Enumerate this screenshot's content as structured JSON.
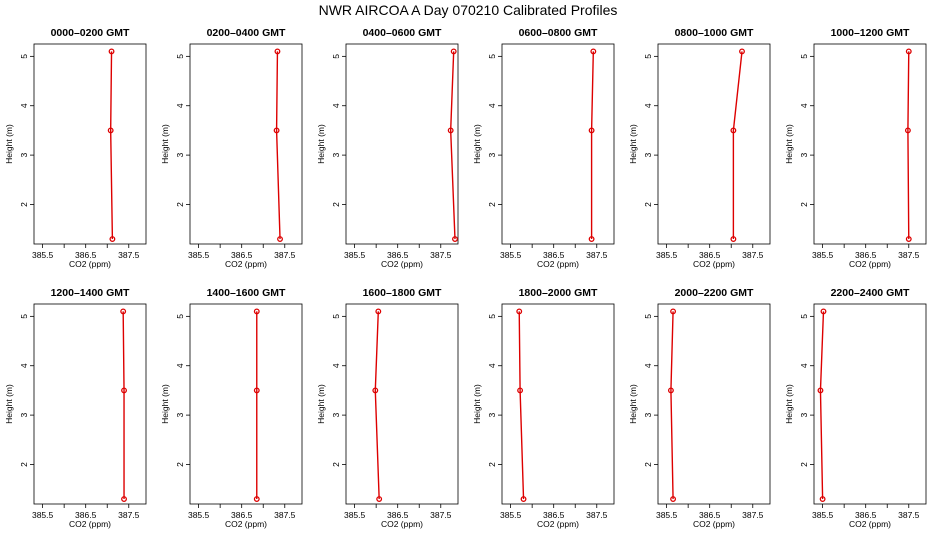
{
  "page_title": "NWR AIRCOA A  Day 070210  Calibrated Profiles",
  "colors": {
    "series": "#dd0000",
    "axis": "#000000"
  },
  "chart_data": [
    {
      "type": "line",
      "title": "0000–0200 GMT",
      "xlabel": "CO2 (ppm)",
      "ylabel": "Height (m)",
      "xlim": [
        385.3,
        387.9
      ],
      "ylim": [
        1.2,
        5.25
      ],
      "xticks": [
        385.5,
        386.0,
        386.5,
        387.0,
        387.5
      ],
      "xtick_labels": [
        "385.5",
        "",
        "386.5",
        "",
        "387.5"
      ],
      "yticks": [
        2,
        3,
        4,
        5
      ],
      "ytick_labels": [
        "2",
        "3",
        "4",
        "5"
      ],
      "series": [
        {
          "x": [
            387.1,
            387.08,
            387.12
          ],
          "y": [
            5.1,
            3.5,
            1.3
          ]
        }
      ]
    },
    {
      "type": "line",
      "title": "0200–0400 GMT",
      "xlabel": "CO2 (ppm)",
      "ylabel": "Height (m)",
      "xlim": [
        385.3,
        387.9
      ],
      "ylim": [
        1.2,
        5.25
      ],
      "xticks": [
        385.5,
        386.0,
        386.5,
        387.0,
        387.5
      ],
      "xtick_labels": [
        "385.5",
        "",
        "386.5",
        "",
        "387.5"
      ],
      "yticks": [
        2,
        3,
        4,
        5
      ],
      "ytick_labels": [
        "2",
        "3",
        "4",
        "5"
      ],
      "series": [
        {
          "x": [
            387.33,
            387.31,
            387.39
          ],
          "y": [
            5.1,
            3.5,
            1.3
          ]
        }
      ]
    },
    {
      "type": "line",
      "title": "0400–0600 GMT",
      "xlabel": "CO2 (ppm)",
      "ylabel": "Height (m)",
      "xlim": [
        385.3,
        387.9
      ],
      "ylim": [
        1.2,
        5.25
      ],
      "xticks": [
        385.5,
        386.0,
        386.5,
        387.0,
        387.5
      ],
      "xtick_labels": [
        "385.5",
        "",
        "386.5",
        "",
        "387.5"
      ],
      "yticks": [
        2,
        3,
        4,
        5
      ],
      "ytick_labels": [
        "2",
        "3",
        "4",
        "5"
      ],
      "series": [
        {
          "x": [
            387.8,
            387.73,
            387.83
          ],
          "y": [
            5.1,
            3.5,
            1.3
          ]
        }
      ]
    },
    {
      "type": "line",
      "title": "0600–0800 GMT",
      "xlabel": "CO2 (ppm)",
      "ylabel": "Height (m)",
      "xlim": [
        385.3,
        387.9
      ],
      "ylim": [
        1.2,
        5.25
      ],
      "xticks": [
        385.5,
        386.0,
        386.5,
        387.0,
        387.5
      ],
      "xtick_labels": [
        "385.5",
        "",
        "386.5",
        "",
        "387.5"
      ],
      "yticks": [
        2,
        3,
        4,
        5
      ],
      "ytick_labels": [
        "2",
        "3",
        "4",
        "5"
      ],
      "series": [
        {
          "x": [
            387.42,
            387.38,
            387.38
          ],
          "y": [
            5.1,
            3.5,
            1.3
          ]
        }
      ]
    },
    {
      "type": "line",
      "title": "0800–1000 GMT",
      "xlabel": "CO2 (ppm)",
      "ylabel": "Height (m)",
      "xlim": [
        385.3,
        387.9
      ],
      "ylim": [
        1.2,
        5.25
      ],
      "xticks": [
        385.5,
        386.0,
        386.5,
        387.0,
        387.5
      ],
      "xtick_labels": [
        "385.5",
        "",
        "386.5",
        "",
        "387.5"
      ],
      "yticks": [
        2,
        3,
        4,
        5
      ],
      "ytick_labels": [
        "2",
        "3",
        "4",
        "5"
      ],
      "series": [
        {
          "x": [
            387.25,
            387.05,
            387.05
          ],
          "y": [
            5.1,
            3.5,
            1.3
          ]
        }
      ]
    },
    {
      "type": "line",
      "title": "1000–1200 GMT",
      "xlabel": "CO2 (ppm)",
      "ylabel": "Height (m)",
      "xlim": [
        385.3,
        387.9
      ],
      "ylim": [
        1.2,
        5.25
      ],
      "xticks": [
        385.5,
        386.0,
        386.5,
        387.0,
        387.5
      ],
      "xtick_labels": [
        "385.5",
        "",
        "386.5",
        "",
        "387.5"
      ],
      "yticks": [
        2,
        3,
        4,
        5
      ],
      "ytick_labels": [
        "2",
        "3",
        "4",
        "5"
      ],
      "series": [
        {
          "x": [
            387.5,
            387.48,
            387.5
          ],
          "y": [
            5.1,
            3.5,
            1.3
          ]
        }
      ]
    },
    {
      "type": "line",
      "title": "1200–1400 GMT",
      "xlabel": "CO2 (ppm)",
      "ylabel": "Height (m)",
      "xlim": [
        385.3,
        387.9
      ],
      "ylim": [
        1.2,
        5.25
      ],
      "xticks": [
        385.5,
        386.0,
        386.5,
        387.0,
        387.5
      ],
      "xtick_labels": [
        "385.5",
        "",
        "386.5",
        "",
        "387.5"
      ],
      "yticks": [
        2,
        3,
        4,
        5
      ],
      "ytick_labels": [
        "2",
        "3",
        "4",
        "5"
      ],
      "series": [
        {
          "x": [
            387.37,
            387.39,
            387.39
          ],
          "y": [
            5.1,
            3.5,
            1.3
          ]
        }
      ]
    },
    {
      "type": "line",
      "title": "1400–1600 GMT",
      "xlabel": "CO2 (ppm)",
      "ylabel": "Height (m)",
      "xlim": [
        385.3,
        387.9
      ],
      "ylim": [
        1.2,
        5.25
      ],
      "xticks": [
        385.5,
        386.0,
        386.5,
        387.0,
        387.5
      ],
      "xtick_labels": [
        "385.5",
        "",
        "386.5",
        "",
        "387.5"
      ],
      "yticks": [
        2,
        3,
        4,
        5
      ],
      "ytick_labels": [
        "2",
        "3",
        "4",
        "5"
      ],
      "series": [
        {
          "x": [
            386.85,
            386.85,
            386.85
          ],
          "y": [
            5.1,
            3.5,
            1.3
          ]
        }
      ]
    },
    {
      "type": "line",
      "title": "1600–1800 GMT",
      "xlabel": "CO2 (ppm)",
      "ylabel": "Height (m)",
      "xlim": [
        385.3,
        387.9
      ],
      "ylim": [
        1.2,
        5.25
      ],
      "xticks": [
        385.5,
        386.0,
        386.5,
        387.0,
        387.5
      ],
      "xtick_labels": [
        "385.5",
        "",
        "386.5",
        "",
        "387.5"
      ],
      "yticks": [
        2,
        3,
        4,
        5
      ],
      "ytick_labels": [
        "2",
        "3",
        "4",
        "5"
      ],
      "series": [
        {
          "x": [
            386.05,
            385.98,
            386.07
          ],
          "y": [
            5.1,
            3.5,
            1.3
          ]
        }
      ]
    },
    {
      "type": "line",
      "title": "1800–2000 GMT",
      "xlabel": "CO2 (ppm)",
      "ylabel": "Height (m)",
      "xlim": [
        385.3,
        387.9
      ],
      "ylim": [
        1.2,
        5.25
      ],
      "xticks": [
        385.5,
        386.0,
        386.5,
        387.0,
        387.5
      ],
      "xtick_labels": [
        "385.5",
        "",
        "386.5",
        "",
        "387.5"
      ],
      "yticks": [
        2,
        3,
        4,
        5
      ],
      "ytick_labels": [
        "2",
        "3",
        "4",
        "5"
      ],
      "series": [
        {
          "x": [
            385.7,
            385.72,
            385.8
          ],
          "y": [
            5.1,
            3.5,
            1.3
          ]
        }
      ]
    },
    {
      "type": "line",
      "title": "2000–2200 GMT",
      "xlabel": "CO2 (ppm)",
      "ylabel": "Height (m)",
      "xlim": [
        385.3,
        387.9
      ],
      "ylim": [
        1.2,
        5.25
      ],
      "xticks": [
        385.5,
        386.0,
        386.5,
        387.0,
        387.5
      ],
      "xtick_labels": [
        "385.5",
        "",
        "386.5",
        "",
        "387.5"
      ],
      "yticks": [
        2,
        3,
        4,
        5
      ],
      "ytick_labels": [
        "2",
        "3",
        "4",
        "5"
      ],
      "series": [
        {
          "x": [
            385.65,
            385.6,
            385.65
          ],
          "y": [
            5.1,
            3.5,
            1.3
          ]
        }
      ]
    },
    {
      "type": "line",
      "title": "2200–2400 GMT",
      "xlabel": "CO2 (ppm)",
      "ylabel": "Height (m)",
      "xlim": [
        385.3,
        387.9
      ],
      "ylim": [
        1.2,
        5.25
      ],
      "xticks": [
        385.5,
        386.0,
        386.5,
        387.0,
        387.5
      ],
      "xtick_labels": [
        "385.5",
        "",
        "386.5",
        "",
        "387.5"
      ],
      "yticks": [
        2,
        3,
        4,
        5
      ],
      "ytick_labels": [
        "2",
        "3",
        "4",
        "5"
      ],
      "series": [
        {
          "x": [
            385.52,
            385.45,
            385.5
          ],
          "y": [
            5.1,
            3.5,
            1.3
          ]
        }
      ]
    }
  ]
}
